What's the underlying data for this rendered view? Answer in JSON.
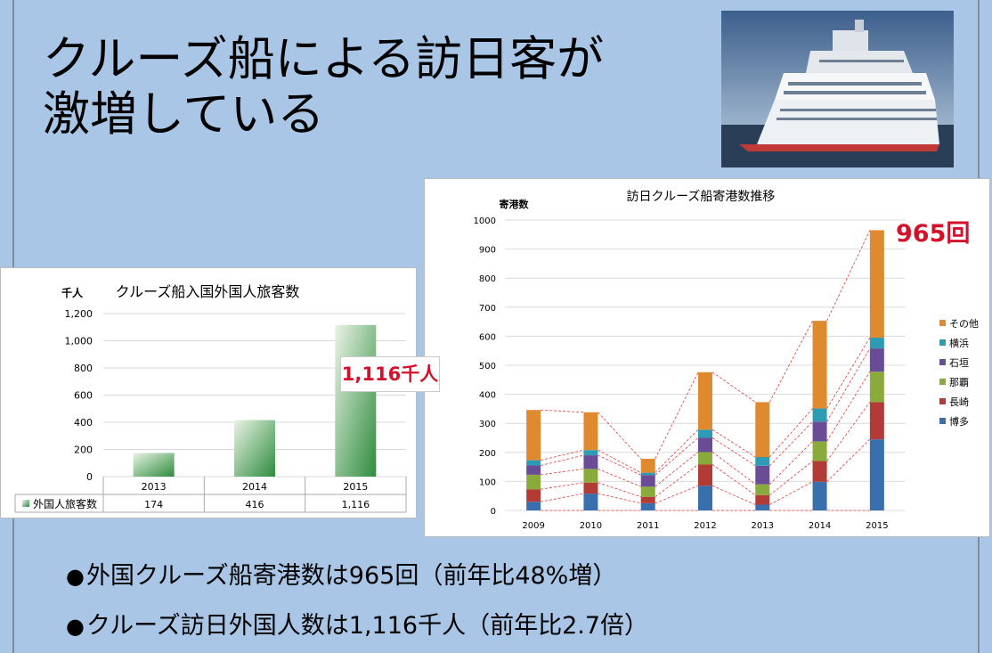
{
  "title_lines": [
    "クルーズ船による訪日客が",
    "激増している"
  ],
  "callouts": {
    "passengers": "1,116千人",
    "calls": "965回"
  },
  "bullets": [
    "外国クルーズ船寄港数は965回（前年比48%増）",
    "クルーズ訪日外国人数は1,116千人（前年比2.7倍）"
  ],
  "bullet_marker": "●",
  "colors": {
    "background": "#a9c6e6",
    "bar_green": "#2e8b3e",
    "callout_red": "#d4102a"
  },
  "chart_data": [
    {
      "type": "bar",
      "title": "クルーズ船入国外国人旅客数",
      "ylabel": "千人",
      "categories": [
        "2013",
        "2014",
        "2015"
      ],
      "series": [
        {
          "name": "外国人旅客数",
          "values": [
            174,
            416,
            1116
          ]
        }
      ],
      "table_values": [
        "174",
        "416",
        "1,116"
      ],
      "ylim": [
        0,
        1200
      ],
      "yticks": [
        "0",
        "200",
        "400",
        "600",
        "800",
        "1,000",
        "1,200"
      ],
      "grid": true,
      "legend": "data-table"
    },
    {
      "type": "bar",
      "stacked": true,
      "title": "訪日クルーズ船寄港数推移",
      "ylabel": "寄港数",
      "categories": [
        "2009",
        "2010",
        "2011",
        "2012",
        "2013",
        "2014",
        "2015"
      ],
      "series": [
        {
          "name": "博多",
          "color": "#3a6fae",
          "values": [
            30,
            58,
            25,
            85,
            20,
            99,
            245
          ]
        },
        {
          "name": "長崎",
          "color": "#b23b36",
          "values": [
            43,
            38,
            22,
            73,
            33,
            71,
            128
          ]
        },
        {
          "name": "那覇",
          "color": "#8aaa3c",
          "values": [
            50,
            47,
            35,
            43,
            37,
            68,
            105
          ]
        },
        {
          "name": "石垣",
          "color": "#6a4c96",
          "values": [
            32,
            47,
            40,
            49,
            64,
            68,
            80
          ]
        },
        {
          "name": "横浜",
          "color": "#2e9bb4",
          "values": [
            18,
            18,
            8,
            28,
            30,
            45,
            37
          ]
        },
        {
          "name": "その他",
          "color": "#e08a30",
          "values": [
            173,
            130,
            48,
            198,
            189,
            302,
            370
          ]
        }
      ],
      "ylim": [
        0,
        1000
      ],
      "yticks": [
        "0",
        "100",
        "200",
        "300",
        "400",
        "500",
        "600",
        "700",
        "800",
        "900",
        "1000"
      ],
      "grid": true,
      "legend": "right"
    }
  ]
}
